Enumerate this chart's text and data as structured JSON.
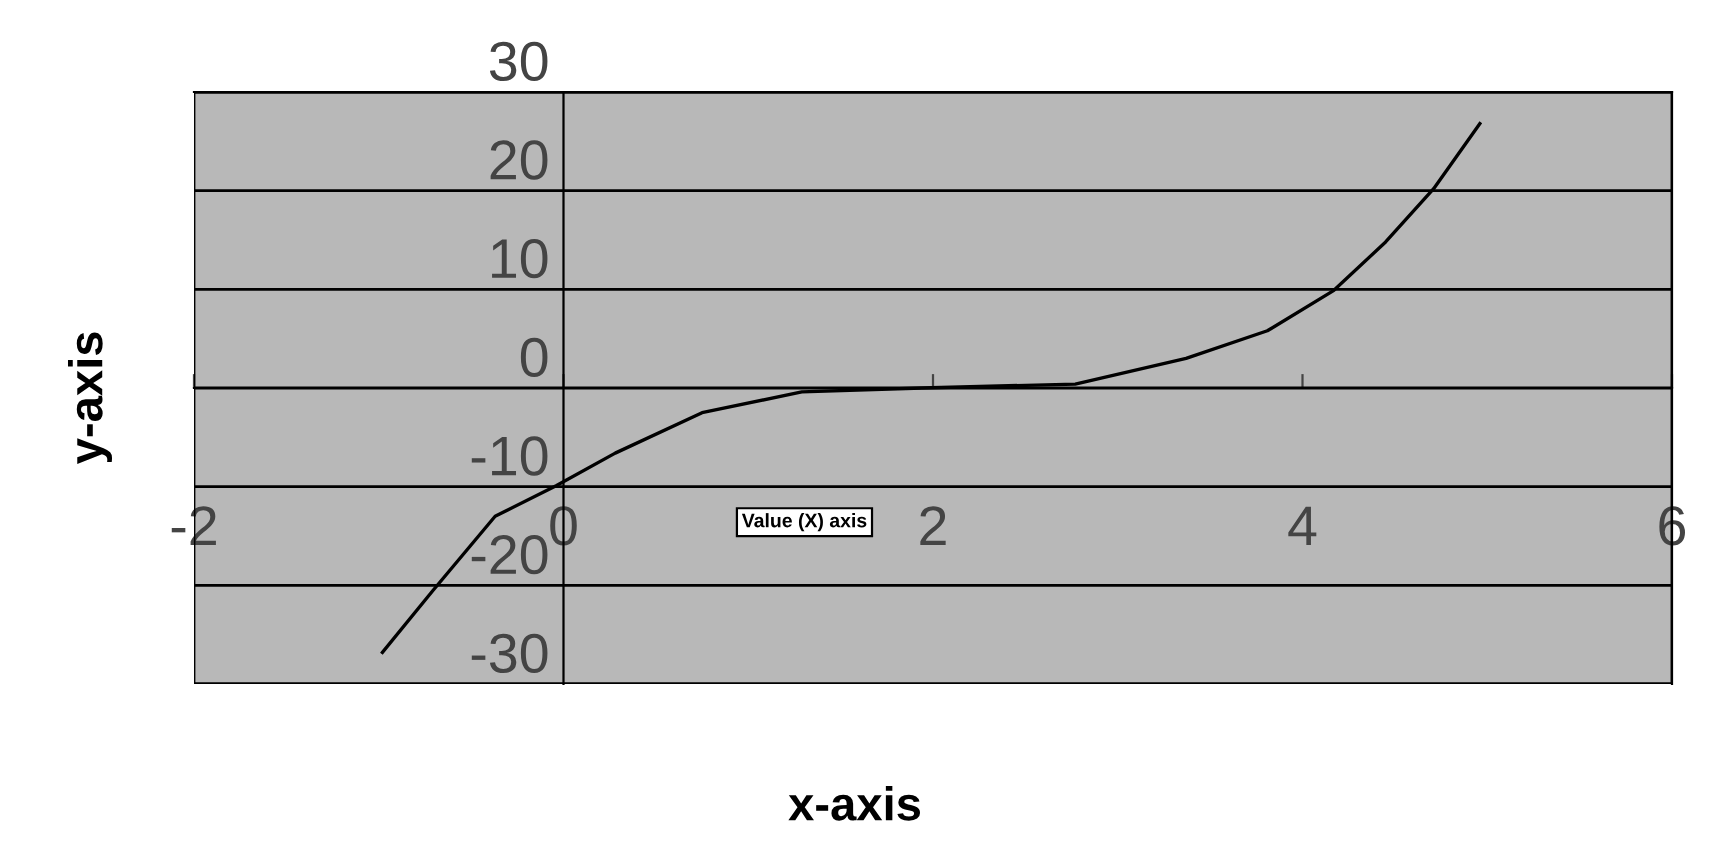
{
  "chart_data": {
    "type": "line",
    "xlabel": "x-axis",
    "ylabel": "y-axis",
    "series": [
      {
        "color": "#000000",
        "x": [
          -0.98,
          -0.71,
          -0.37,
          -0.04,
          0.28,
          0.75,
          1.29,
          1.94,
          2.77,
          3.37,
          3.81,
          4.17,
          4.45,
          4.71,
          4.96
        ],
        "values": [
          -26.8,
          -20.6,
          -13,
          -9.9,
          -6.6,
          -2.5,
          -0.4,
          0,
          0.4,
          3,
          5.8,
          9.9,
          14.8,
          20.2,
          26.8
        ]
      }
    ],
    "xlim": [
      -2,
      6
    ],
    "ylim": [
      -30,
      30
    ],
    "xticks": [
      -2,
      0,
      2,
      4,
      6
    ],
    "yticks": [
      -30,
      -20,
      -10,
      0,
      10,
      20,
      30
    ],
    "grid": "y",
    "marker": "none",
    "line_style": "solid",
    "annotations": [
      "Value (X) axis"
    ]
  }
}
